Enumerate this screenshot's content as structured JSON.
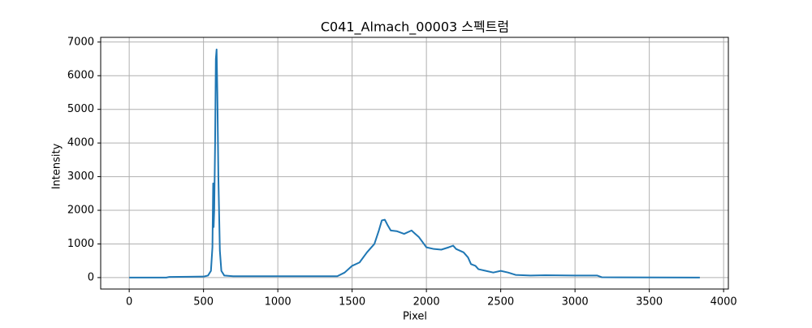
{
  "chart_data": {
    "type": "line",
    "title": "C041_Almach_00003 스펙트럼",
    "x_label": "Pixel",
    "y_label": "Intensity",
    "x": [
      0,
      250,
      270,
      400,
      500,
      530,
      550,
      560,
      565,
      568,
      572,
      578,
      583,
      588,
      593,
      600,
      610,
      620,
      640,
      700,
      1000,
      1400,
      1450,
      1500,
      1550,
      1600,
      1650,
      1680,
      1700,
      1720,
      1740,
      1760,
      1800,
      1850,
      1900,
      1920,
      1950,
      2000,
      2050,
      2100,
      2150,
      2180,
      2200,
      2250,
      2280,
      2300,
      2330,
      2350,
      2400,
      2450,
      2500,
      2550,
      2600,
      2700,
      2800,
      3000,
      3150,
      3180,
      3840
    ],
    "series": [
      {
        "name": "Intensity",
        "color": "#1f77b4",
        "values": [
          0,
          0,
          20,
          25,
          30,
          60,
          200,
          900,
          2800,
          1500,
          2000,
          4000,
          6500,
          6780,
          5500,
          3000,
          800,
          200,
          60,
          40,
          40,
          40,
          150,
          350,
          450,
          750,
          1000,
          1400,
          1700,
          1720,
          1550,
          1400,
          1380,
          1300,
          1400,
          1320,
          1200,
          900,
          850,
          830,
          900,
          950,
          850,
          750,
          600,
          400,
          350,
          250,
          200,
          150,
          200,
          150,
          80,
          60,
          70,
          60,
          60,
          10,
          0
        ]
      }
    ],
    "xlim": [
      -192,
      4032
    ],
    "xticks": [
      0,
      500,
      1000,
      1500,
      2000,
      2500,
      3000,
      3500,
      4000
    ],
    "ylim": [
      -340,
      7140
    ],
    "yticks": [
      0,
      1000,
      2000,
      3000,
      4000,
      5000,
      6000,
      7000
    ],
    "grid": true
  }
}
